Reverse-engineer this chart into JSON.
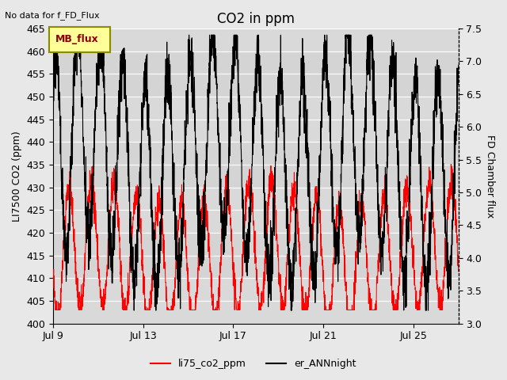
{
  "title": "CO2 in ppm",
  "top_left_text": "No data for f_FD_Flux",
  "ylabel_left": "LI7500 CO2 (ppm)",
  "ylabel_right": "FD Chamber flux",
  "ylim_left": [
    400,
    465
  ],
  "ylim_right": [
    3.0,
    7.5
  ],
  "yticks_left": [
    400,
    405,
    410,
    415,
    420,
    425,
    430,
    435,
    440,
    445,
    450,
    455,
    460,
    465
  ],
  "yticks_right": [
    3.0,
    3.5,
    4.0,
    4.5,
    5.0,
    5.5,
    6.0,
    6.5,
    7.0,
    7.5
  ],
  "xtick_labels": [
    "Jul 9",
    "Jul 13",
    "Jul 17",
    "Jul 21",
    "Jul 25"
  ],
  "xtick_positions": [
    0,
    4,
    8,
    12,
    16
  ],
  "legend_label_red": "li75_co2_ppm",
  "legend_label_black": "er_ANNnight",
  "line_color_red": "#ff0000",
  "line_color_black": "#000000",
  "bg_color": "#e8e8e8",
  "plot_bg_color": "#d4d4d4",
  "band_light_color": "#dcdcdc",
  "mb_flux_box_color": "#ffff99",
  "mb_flux_text_color": "#8b0000",
  "mb_flux_edge_color": "#8b8b00",
  "title_fontsize": 12,
  "label_fontsize": 9,
  "tick_fontsize": 9,
  "legend_fontsize": 9,
  "n_days": 18,
  "n_per_day": 144
}
